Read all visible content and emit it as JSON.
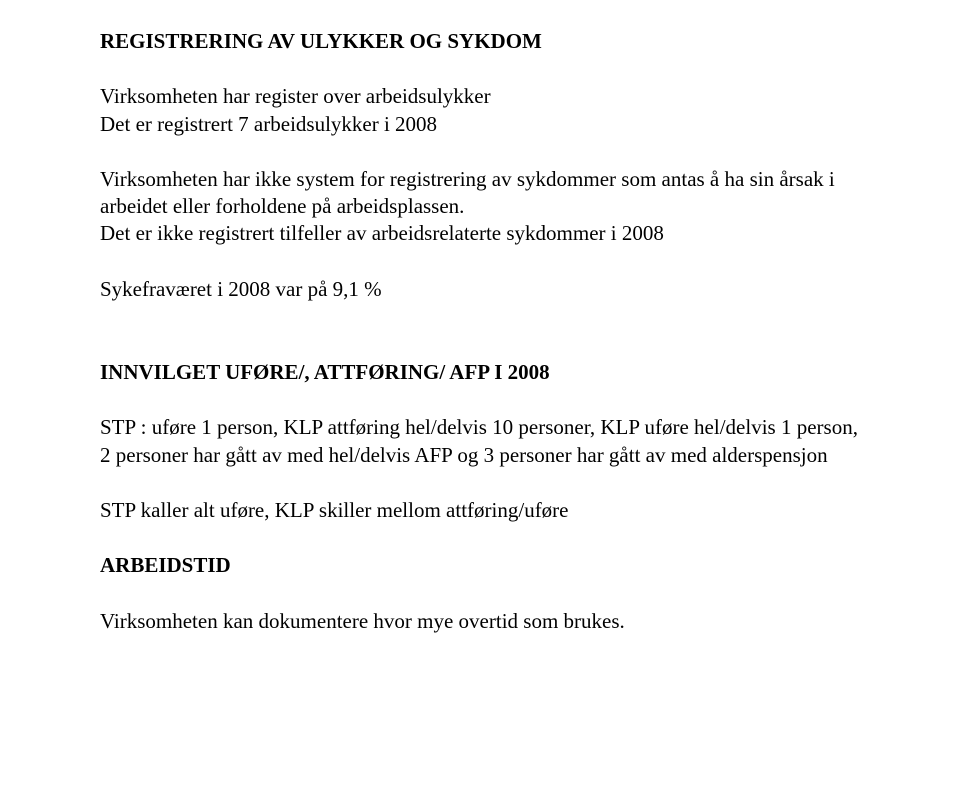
{
  "colors": {
    "text": "#000000",
    "background": "#ffffff"
  },
  "typography": {
    "font_family": "Times New Roman",
    "heading_weight": "bold",
    "body_weight": "normal",
    "font_size_pt": 16
  },
  "sections": {
    "s1": {
      "heading": "REGISTRERING AV ULYKKER OG SYKDOM",
      "p1": "Virksomheten har register over arbeidsulykker",
      "p2": "Det er registrert 7 arbeidsulykker i 2008",
      "p3": "Virksomheten har ikke system for registrering av sykdommer som antas å ha sin årsak i arbeidet eller forholdene på arbeidsplassen.",
      "p4": "Det er ikke registrert tilfeller av arbeidsrelaterte sykdommer i 2008",
      "p5": "Sykefraværet i 2008 var på 9,1 %"
    },
    "s2": {
      "heading": "INNVILGET UFØRE/, ATTFØRING/ AFP I 2008",
      "p1": "STP : uføre 1 person, KLP  attføring hel/delvis 10 personer, KLP uføre hel/delvis 1 person, 2 personer har gått av med  hel/delvis AFP og 3 personer har gått av med alderspensjon",
      "p2": "STP kaller  alt uføre, KLP skiller mellom attføring/uføre"
    },
    "s3": {
      "heading": "ARBEIDSTID",
      "p1": "Virksomheten kan dokumentere hvor mye overtid som brukes."
    }
  }
}
